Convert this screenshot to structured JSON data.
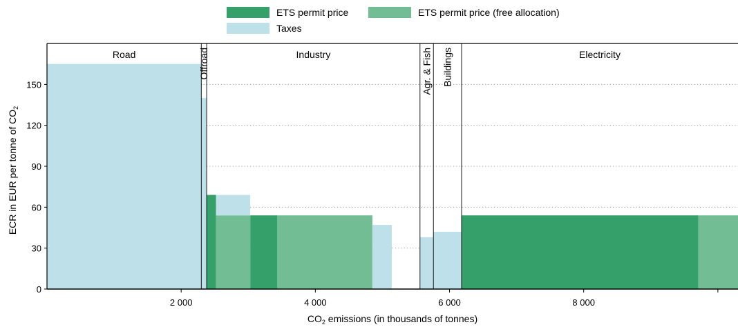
{
  "chart_data": {
    "type": "bar",
    "subtype": "variable-width stacked bar (marimekko)",
    "xlabel": {
      "main": "CO",
      "sub": "2",
      "rest": " emissions (in thousands of tonnes)"
    },
    "ylabel": {
      "main": "ECR in EUR per tonne of CO",
      "sub": "2"
    },
    "xlim": [
      0,
      10300
    ],
    "ylim": [
      0,
      180
    ],
    "x_ticks": [
      {
        "value": 2000,
        "label": "2 000"
      },
      {
        "value": 4000,
        "label": "4 000"
      },
      {
        "value": 6000,
        "label": "6 000"
      },
      {
        "value": 8000,
        "label": "8 000"
      },
      {
        "value": 10000,
        "label": ""
      }
    ],
    "y_ticks": [
      {
        "value": 0,
        "label": "0"
      },
      {
        "value": 30,
        "label": "30"
      },
      {
        "value": 60,
        "label": "60"
      },
      {
        "value": 90,
        "label": "90"
      },
      {
        "value": 120,
        "label": "120"
      },
      {
        "value": 150,
        "label": "150"
      }
    ],
    "grid": "horizontal dotted",
    "legend_placement": "top",
    "series": [
      {
        "key": "ets",
        "name": "ETS permit price",
        "color": "#35a06a"
      },
      {
        "key": "ets_free",
        "name": "ETS permit price (free allocation)",
        "color": "#72bd94"
      },
      {
        "key": "taxes",
        "name": "Taxes",
        "color": "#bee0e8"
      }
    ],
    "sectors": [
      {
        "name": "Road",
        "x0": 0,
        "x1": 2300,
        "vertical": false
      },
      {
        "name": "Offroad",
        "x0": 2300,
        "x1": 2380,
        "vertical": true
      },
      {
        "name": "Industry",
        "x0": 2380,
        "x1": 5560,
        "vertical": false
      },
      {
        "name": "Agr. & Fish",
        "x0": 5560,
        "x1": 5760,
        "vertical": true
      },
      {
        "name": "Buildings",
        "x0": 5760,
        "x1": 6180,
        "vertical": true
      },
      {
        "name": "Electricity",
        "x0": 6180,
        "x1": 10300,
        "vertical": false
      }
    ],
    "bars": [
      {
        "x0": 0,
        "x1": 2300,
        "taxes": 165,
        "ets": 0,
        "ets_free": 0
      },
      {
        "x0": 2300,
        "x1": 2380,
        "taxes": 140,
        "ets": 0,
        "ets_free": 0
      },
      {
        "x0": 2380,
        "x1": 2520,
        "taxes": 0,
        "ets": 69,
        "ets_free": 0
      },
      {
        "x0": 2520,
        "x1": 3030,
        "taxes": 15,
        "ets": 0,
        "ets_free": 54
      },
      {
        "x0": 3030,
        "x1": 3430,
        "taxes": 0,
        "ets": 54,
        "ets_free": 0
      },
      {
        "x0": 3430,
        "x1": 4850,
        "taxes": 0,
        "ets": 0,
        "ets_free": 54
      },
      {
        "x0": 4850,
        "x1": 5140,
        "taxes": 47,
        "ets": 0,
        "ets_free": 0
      },
      {
        "x0": 5560,
        "x1": 5760,
        "taxes": 38,
        "ets": 0,
        "ets_free": 0
      },
      {
        "x0": 5760,
        "x1": 6180,
        "taxes": 42,
        "ets": 0,
        "ets_free": 0
      },
      {
        "x0": 6180,
        "x1": 9710,
        "taxes": 0,
        "ets": 54,
        "ets_free": 0
      },
      {
        "x0": 9710,
        "x1": 10300,
        "taxes": 0,
        "ets": 0,
        "ets_free": 54
      }
    ]
  }
}
